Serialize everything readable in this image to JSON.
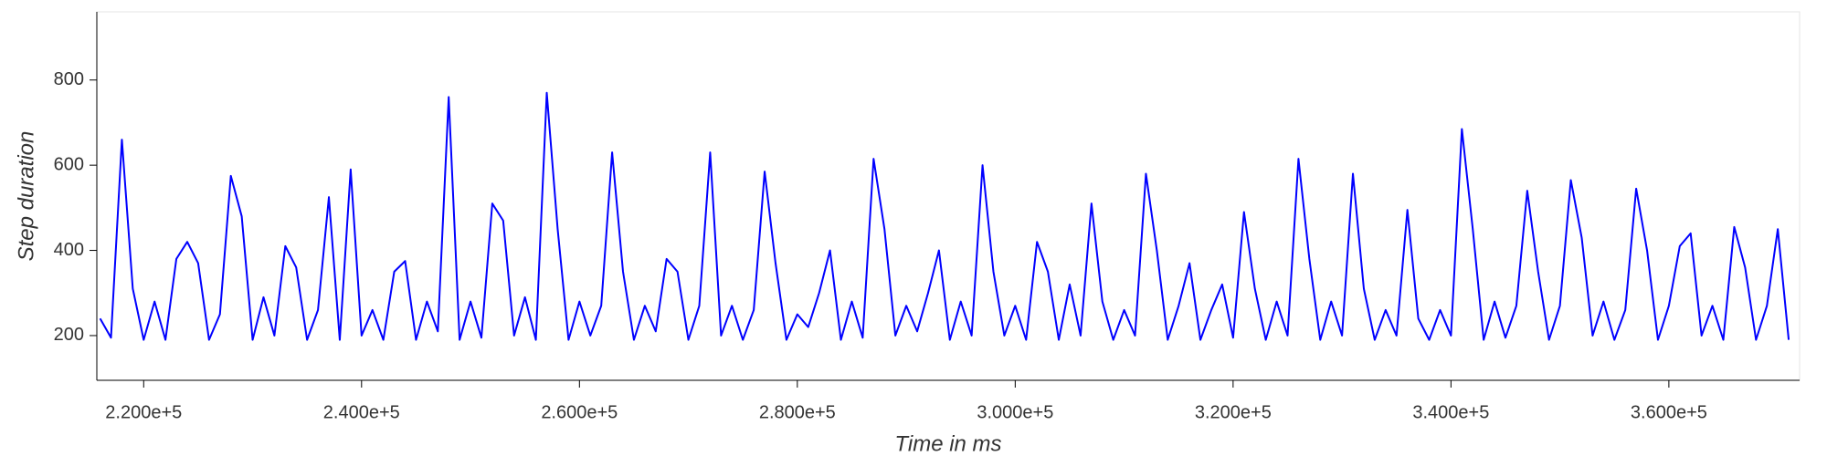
{
  "chart_data": {
    "type": "line",
    "x_label": "Time in ms",
    "y_label": "Step duration",
    "xlim": [
      215700,
      372000
    ],
    "ylim": [
      95,
      960
    ],
    "xticks": [
      {
        "value": 220000,
        "label": "2.200e+5"
      },
      {
        "value": 240000,
        "label": "2.400e+5"
      },
      {
        "value": 260000,
        "label": "2.600e+5"
      },
      {
        "value": 280000,
        "label": "2.800e+5"
      },
      {
        "value": 300000,
        "label": "3.000e+5"
      },
      {
        "value": 320000,
        "label": "3.200e+5"
      },
      {
        "value": 340000,
        "label": "3.400e+5"
      },
      {
        "value": 360000,
        "label": "3.600e+5"
      }
    ],
    "yticks": [
      200,
      400,
      600,
      800
    ],
    "grid": false,
    "series": [
      {
        "color": "#0000ff",
        "x": [
          216000,
          217000,
          218000,
          219000,
          220000,
          221000,
          222000,
          223000,
          224000,
          225000,
          226000,
          227000,
          228000,
          229000,
          230000,
          231000,
          232000,
          233000,
          234000,
          235000,
          236000,
          237000,
          238000,
          239000,
          240000,
          241000,
          242000,
          243000,
          244000,
          245000,
          246000,
          247000,
          248000,
          249000,
          250000,
          251000,
          252000,
          253000,
          254000,
          255000,
          256000,
          257000,
          258000,
          259000,
          260000,
          261000,
          262000,
          263000,
          264000,
          265000,
          266000,
          267000,
          268000,
          269000,
          270000,
          271000,
          272000,
          273000,
          274000,
          275000,
          276000,
          277000,
          278000,
          279000,
          280000,
          281000,
          282000,
          283000,
          284000,
          285000,
          286000,
          287000,
          288000,
          289000,
          290000,
          291000,
          292000,
          293000,
          294000,
          295000,
          296000,
          297000,
          298000,
          299000,
          300000,
          301000,
          302000,
          303000,
          304000,
          305000,
          306000,
          307000,
          308000,
          309000,
          310000,
          311000,
          312000,
          313000,
          314000,
          315000,
          316000,
          317000,
          318000,
          319000,
          320000,
          321000,
          322000,
          323000,
          324000,
          325000,
          326000,
          327000,
          328000,
          329000,
          330000,
          331000,
          332000,
          333000,
          334000,
          335000,
          336000,
          337000,
          338000,
          339000,
          340000,
          341000,
          342000,
          343000,
          344000,
          345000,
          346000,
          347000,
          348000,
          349000,
          350000,
          351000,
          352000,
          353000,
          354000,
          355000,
          356000,
          357000,
          358000,
          359000,
          360000,
          361000,
          362000,
          363000,
          364000,
          365000,
          366000,
          367000,
          368000,
          369000,
          370000,
          371000
        ],
        "values": [
          240,
          195,
          660,
          310,
          190,
          280,
          190,
          380,
          420,
          370,
          190,
          250,
          575,
          480,
          190,
          290,
          200,
          410,
          360,
          190,
          260,
          525,
          190,
          590,
          200,
          260,
          190,
          350,
          375,
          190,
          280,
          210,
          760,
          190,
          280,
          195,
          510,
          470,
          200,
          290,
          190,
          770,
          450,
          190,
          280,
          200,
          270,
          630,
          350,
          190,
          270,
          210,
          380,
          350,
          190,
          270,
          630,
          200,
          270,
          190,
          260,
          585,
          370,
          190,
          250,
          220,
          300,
          400,
          190,
          280,
          195,
          615,
          450,
          200,
          270,
          210,
          300,
          400,
          190,
          280,
          200,
          600,
          350,
          200,
          270,
          190,
          420,
          350,
          190,
          320,
          200,
          510,
          280,
          190,
          260,
          200,
          580,
          400,
          190,
          270,
          370,
          190,
          260,
          320,
          195,
          490,
          310,
          190,
          280,
          200,
          615,
          380,
          190,
          280,
          200,
          580,
          310,
          190,
          260,
          200,
          495,
          240,
          190,
          260,
          200,
          685,
          450,
          190,
          280,
          195,
          270,
          540,
          350,
          190,
          270,
          565,
          430,
          200,
          280,
          190,
          260,
          545,
          400,
          190,
          270,
          410,
          440,
          200,
          270,
          190,
          455,
          360,
          190,
          270,
          450,
          190
        ]
      }
    ]
  }
}
